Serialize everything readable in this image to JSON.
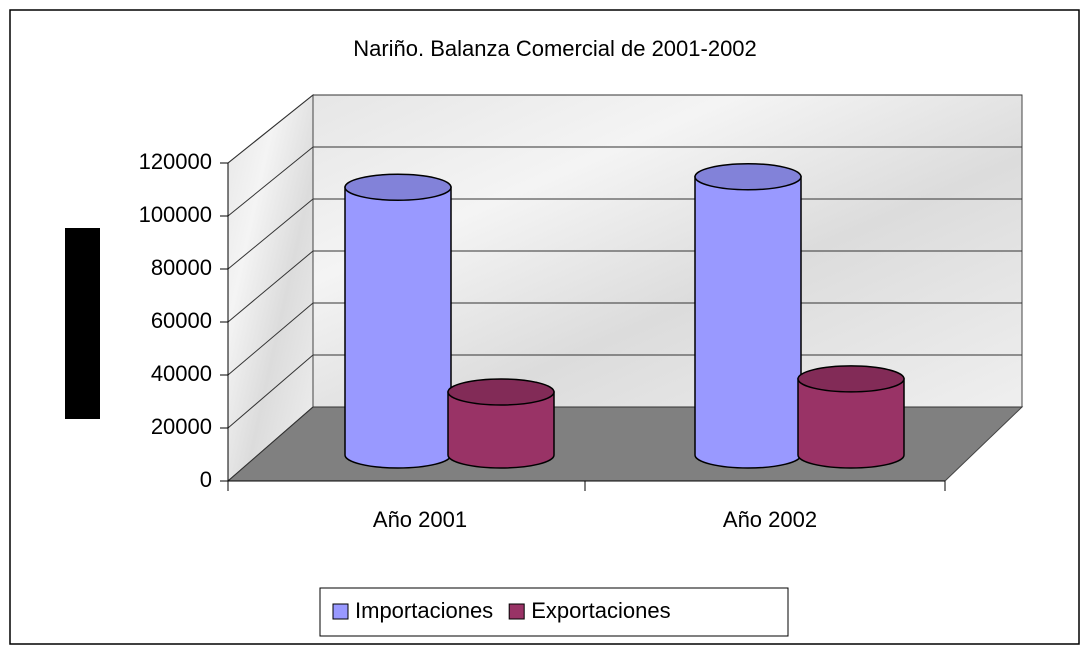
{
  "chart_data": {
    "type": "bar3d",
    "title": "Nariño. Balanza Comercial de 2001-2002",
    "categories": [
      "Año 2001",
      "Año 2002"
    ],
    "series": [
      {
        "name": "Importaciones",
        "color": "#9999ff",
        "values": [
          102000,
          106000
        ]
      },
      {
        "name": "Exportaciones",
        "color": "#993366",
        "values": [
          24000,
          29000
        ]
      }
    ],
    "ylim": [
      0,
      120000
    ],
    "yticks": [
      0,
      20000,
      40000,
      60000,
      80000,
      100000,
      120000
    ],
    "grid": true,
    "legend": "bottom"
  }
}
